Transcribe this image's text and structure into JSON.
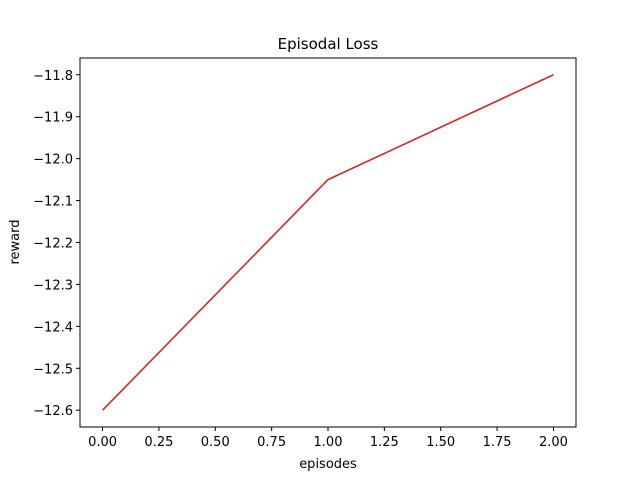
{
  "chart_data": {
    "type": "line",
    "title": "Episodal Loss",
    "xlabel": "episodes",
    "ylabel": "reward",
    "xlim": [
      -0.1,
      2.1
    ],
    "ylim": [
      -12.64,
      -11.76
    ],
    "x_ticks": [
      0.0,
      0.25,
      0.5,
      0.75,
      1.0,
      1.25,
      1.5,
      1.75,
      2.0
    ],
    "x_tick_labels": [
      "0.00",
      "0.25",
      "0.50",
      "0.75",
      "1.00",
      "1.25",
      "1.50",
      "1.75",
      "2.00"
    ],
    "y_ticks": [
      -12.6,
      -12.5,
      -12.4,
      -12.3,
      -12.2,
      -12.1,
      -12.0,
      -11.9,
      -11.8
    ],
    "y_tick_labels": [
      "−12.6",
      "−12.5",
      "−12.4",
      "−12.3",
      "−12.2",
      "−12.1",
      "−12.0",
      "−11.9",
      "−11.8"
    ],
    "grid": false,
    "series": [
      {
        "color": "#d62728",
        "x": [
          0,
          1,
          2
        ],
        "y": [
          -12.6,
          -12.05,
          -11.8
        ]
      }
    ]
  }
}
